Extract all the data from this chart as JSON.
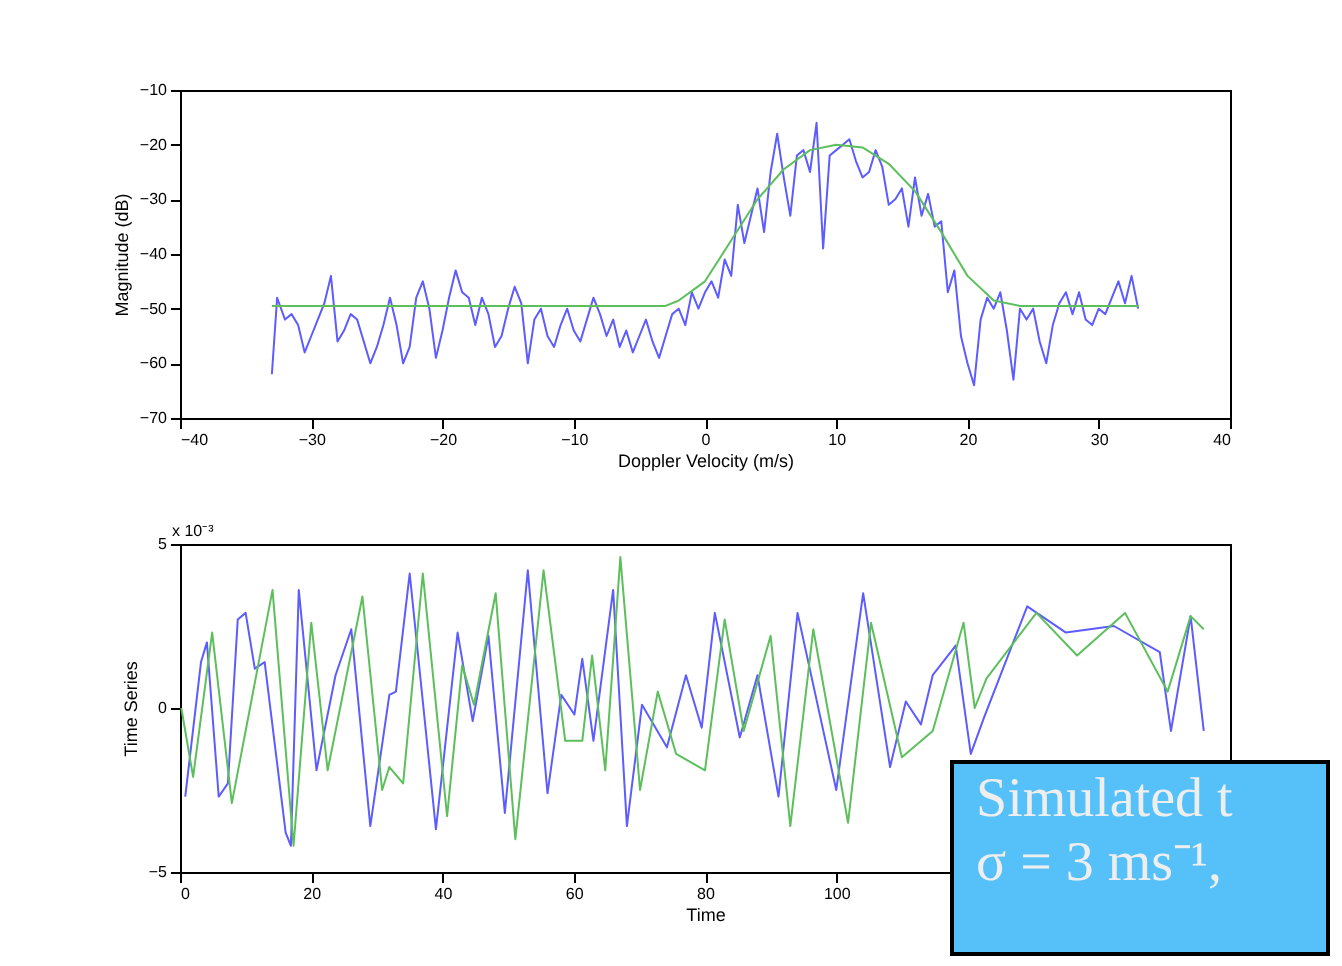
{
  "chart_data": [
    {
      "type": "line",
      "xlabel": "Doppler Velocity (m/s)",
      "ylabel": "Magnitude (dB)",
      "xlim": [
        -40,
        40
      ],
      "ylim": [
        -70,
        -10
      ],
      "xticks": [
        -40,
        -30,
        -20,
        -10,
        0,
        10,
        20,
        30,
        40
      ],
      "yticks": [
        -70,
        -60,
        -50,
        -40,
        -30,
        -20,
        -10
      ],
      "grid": false,
      "legend": false,
      "line_style": "solid",
      "marker": "none",
      "series": [
        {
          "color": "#5c5cff",
          "x": [
            -33,
            -32.6,
            -32,
            -31.5,
            -31,
            -30.5,
            -30,
            -29.5,
            -29,
            -28.5,
            -28,
            -27.5,
            -27,
            -26.5,
            -26,
            -25.5,
            -25,
            -24.5,
            -24,
            -23.5,
            -23,
            -22.5,
            -22,
            -21.5,
            -21,
            -20.5,
            -20,
            -19.5,
            -19,
            -18.5,
            -18,
            -17.5,
            -17,
            -16.5,
            -16,
            -15.5,
            -15,
            -14.5,
            -14,
            -13.5,
            -13,
            -12.5,
            -12,
            -11.5,
            -11,
            -10.5,
            -10,
            -9.5,
            -9,
            -8.5,
            -8,
            -7.5,
            -7,
            -6.5,
            -6,
            -5.5,
            -5,
            -4.5,
            -4,
            -3.5,
            -3,
            -2.5,
            -2,
            -1.5,
            -1,
            -0.5,
            0,
            0.5,
            1,
            1.5,
            2,
            2.5,
            3,
            3.5,
            4,
            4.5,
            5,
            5.5,
            6,
            6.5,
            7,
            7.5,
            8,
            8.5,
            9,
            9.5,
            10,
            10.5,
            11,
            11.5,
            12,
            12.5,
            13,
            13.5,
            14,
            14.5,
            15,
            15.5,
            16,
            16.5,
            17,
            17.5,
            18,
            18.5,
            19,
            19.5,
            20,
            20.5,
            21,
            21.5,
            22,
            22.5,
            23,
            23.5,
            24,
            24.5,
            25,
            25.5,
            26,
            26.5,
            27,
            27.5,
            28,
            28.5,
            29,
            29.5,
            30,
            30.5,
            31,
            31.5,
            32,
            32.5,
            33
          ],
          "values": [
            -62,
            -48,
            -52,
            -51,
            -53,
            -58,
            -55,
            -52,
            -49,
            -44,
            -56,
            -54,
            -51,
            -52,
            -56,
            -60,
            -57,
            -53,
            -48,
            -53,
            -60,
            -57,
            -48,
            -45,
            -50,
            -59,
            -54,
            -48,
            -43,
            -47,
            -48,
            -53,
            -48,
            -51,
            -57,
            -55,
            -50,
            -46,
            -49,
            -60,
            -52,
            -50,
            -55,
            -57,
            -53,
            -50,
            -54,
            -56,
            -52,
            -48,
            -51,
            -55,
            -52,
            -57,
            -54,
            -58,
            -55,
            -52,
            -56,
            -59,
            -55,
            -51,
            -50,
            -53,
            -47,
            -50,
            -47,
            -45,
            -48,
            -41,
            -44,
            -31,
            -38,
            -33,
            -28,
            -36,
            -25,
            -18,
            -26,
            -33,
            -22,
            -21,
            -25,
            -16,
            -39,
            -22,
            -21,
            -20,
            -19,
            -23,
            -26,
            -25,
            -21,
            -24,
            -31,
            -30,
            -28,
            -35,
            -26,
            -33,
            -29,
            -35,
            -34,
            -47,
            -43,
            -55,
            -60,
            -64,
            -52,
            -48,
            -50,
            -47,
            -54,
            -63,
            -50,
            -52,
            -50,
            -56,
            -60,
            -53,
            -49,
            -47,
            -51,
            -47,
            -52,
            -53,
            -50,
            -51,
            -48,
            -45,
            -49,
            -44,
            -50
          ]
        },
        {
          "color": "#5cbf5c",
          "x": [
            -33,
            -3,
            -2,
            0,
            2,
            4,
            6,
            8,
            10,
            12,
            14,
            16,
            18,
            20,
            22,
            24,
            33
          ],
          "values": [
            -49.5,
            -49.5,
            -48.5,
            -45,
            -37.5,
            -30,
            -24.5,
            -21,
            -20,
            -20.5,
            -23.5,
            -28.5,
            -36,
            -44,
            -48.5,
            -49.5,
            -49.5
          ]
        }
      ]
    },
    {
      "type": "line",
      "xlabel": "Time",
      "ylabel": "Time Series",
      "xlim": [
        0,
        160
      ],
      "ylim": [
        -5,
        5
      ],
      "xticks": [
        0,
        20,
        40,
        60,
        80,
        100
      ],
      "yticks": [
        -5,
        0,
        5
      ],
      "grid": false,
      "legend": false,
      "line_style": "solid",
      "marker": "none",
      "annotations": [
        "x 10⁻³",
        "Simulated t",
        "σ = 3 ms⁻¹,"
      ],
      "series": [
        {
          "color": "#5c5cff",
          "x": [
            0.8,
            3.2,
            4.1,
            5.9,
            7.3,
            8.8,
            10,
            11.4,
            12.9,
            16.1,
            16.9,
            18.1,
            20.8,
            23.7,
            26.1,
            29,
            31.9,
            32.9,
            35,
            39,
            42.3,
            44.6,
            47,
            49.5,
            53,
            56,
            58.1,
            60.1,
            61.3,
            63,
            66,
            68.1,
            70.4,
            74.2,
            77.1,
            79.5,
            81.5,
            85.3,
            88,
            91.2,
            94.1,
            100,
            104.1,
            108.2,
            110.6,
            112.9,
            114.7,
            118.2,
            120.5,
            122.5,
            129.1,
            135,
            142.3,
            149.3,
            151,
            154,
            156
          ],
          "values": [
            -2.7,
            1.4,
            2.0,
            -2.7,
            -2.3,
            2.7,
            2.9,
            1.2,
            1.4,
            -3.8,
            -4.2,
            3.6,
            -1.9,
            1.0,
            2.4,
            -3.6,
            0.4,
            0.5,
            4.1,
            -3.7,
            2.3,
            -0.4,
            2.2,
            -3.2,
            4.2,
            -2.6,
            0.4,
            -0.2,
            1.5,
            -1.0,
            3.6,
            -3.6,
            0.1,
            -1.2,
            1.0,
            -0.6,
            2.9,
            -0.9,
            1.0,
            -2.7,
            2.9,
            -2.5,
            3.5,
            -1.8,
            0.2,
            -0.5,
            1.0,
            1.9,
            -1.4,
            -0.3,
            3.1,
            2.3,
            2.5,
            1.7,
            -0.7,
            2.8,
            -0.7
          ]
        },
        {
          "color": "#5cbf5c",
          "x": [
            0.2,
            2,
            4.9,
            7.9,
            14.1,
            17.3,
            20,
            22.5,
            27.8,
            30.8,
            31.9,
            34,
            37,
            40.7,
            43,
            44.8,
            48.1,
            51.1,
            55.4,
            58.7,
            61.3,
            62.8,
            64.8,
            67.1,
            70.1,
            72.8,
            75.6,
            80,
            83,
            85.9,
            90,
            93,
            96.5,
            101.8,
            105.3,
            110,
            114.7,
            119.4,
            121.1,
            122.9,
            130.5,
            136.7,
            144,
            150.5,
            154,
            156
          ],
          "values": [
            0,
            -2.1,
            2.3,
            -2.9,
            3.6,
            -4.2,
            2.6,
            -1.9,
            3.4,
            -2.5,
            -1.8,
            -2.3,
            4.1,
            -3.3,
            1.3,
            0.1,
            3.5,
            -4.0,
            4.2,
            -1.0,
            -1.0,
            1.6,
            -1.9,
            4.6,
            -2.5,
            0.5,
            -1.4,
            -1.9,
            2.7,
            -0.7,
            2.2,
            -3.6,
            2.4,
            -3.5,
            2.6,
            -1.5,
            -0.7,
            2.6,
            0,
            0.9,
            2.9,
            1.6,
            2.9,
            0.5,
            2.8,
            2.4
          ]
        }
      ]
    }
  ]
}
